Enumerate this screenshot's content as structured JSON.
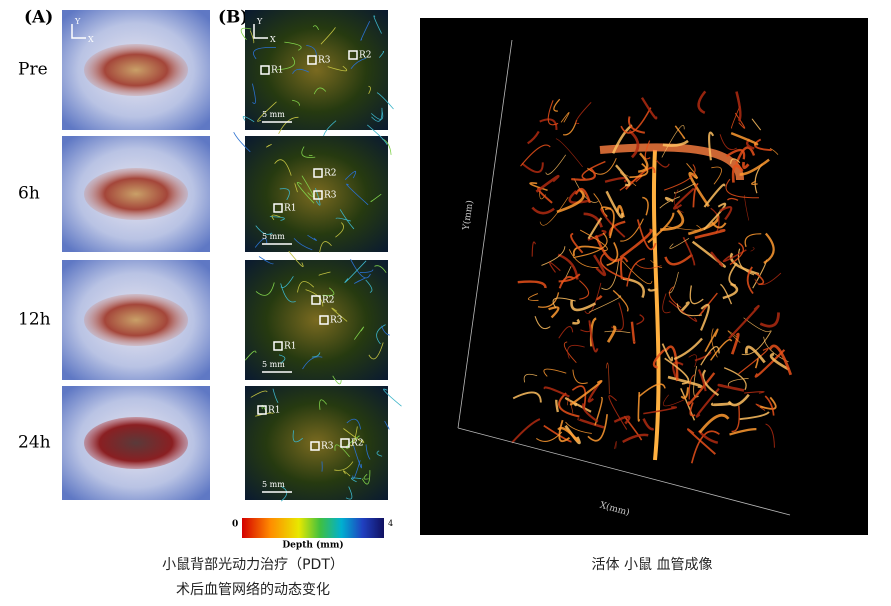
{
  "panel_a": {
    "label": "(A)",
    "axis_y": "Y",
    "axis_x": "X",
    "rows": [
      "Pre",
      "6h",
      "12h",
      "24h"
    ]
  },
  "panel_b": {
    "label": "(B)",
    "axis_y": "Y",
    "axis_x": "X",
    "images": [
      {
        "rois": [
          "R1",
          "R3",
          "R2"
        ],
        "scale": "5 mm"
      },
      {
        "rois": [
          "R1",
          "R3",
          "R2"
        ],
        "scale": "5 mm"
      },
      {
        "rois": [
          "R1",
          "R3",
          "R2"
        ],
        "scale": "5 mm"
      },
      {
        "rois": [
          "R1",
          "R3",
          "R2"
        ],
        "scale": "5 mm"
      }
    ]
  },
  "colorbar": {
    "min": "0",
    "max": "4",
    "label": "Depth (mm)"
  },
  "caption_left": [
    "小鼠背部光动力治疗（PDT）",
    "术后血管网络的动态变化"
  ],
  "render": {
    "x_axis": "X(mm)",
    "y_axis": "Y(mm)"
  },
  "caption_right": "活体 小鼠 血管成像"
}
